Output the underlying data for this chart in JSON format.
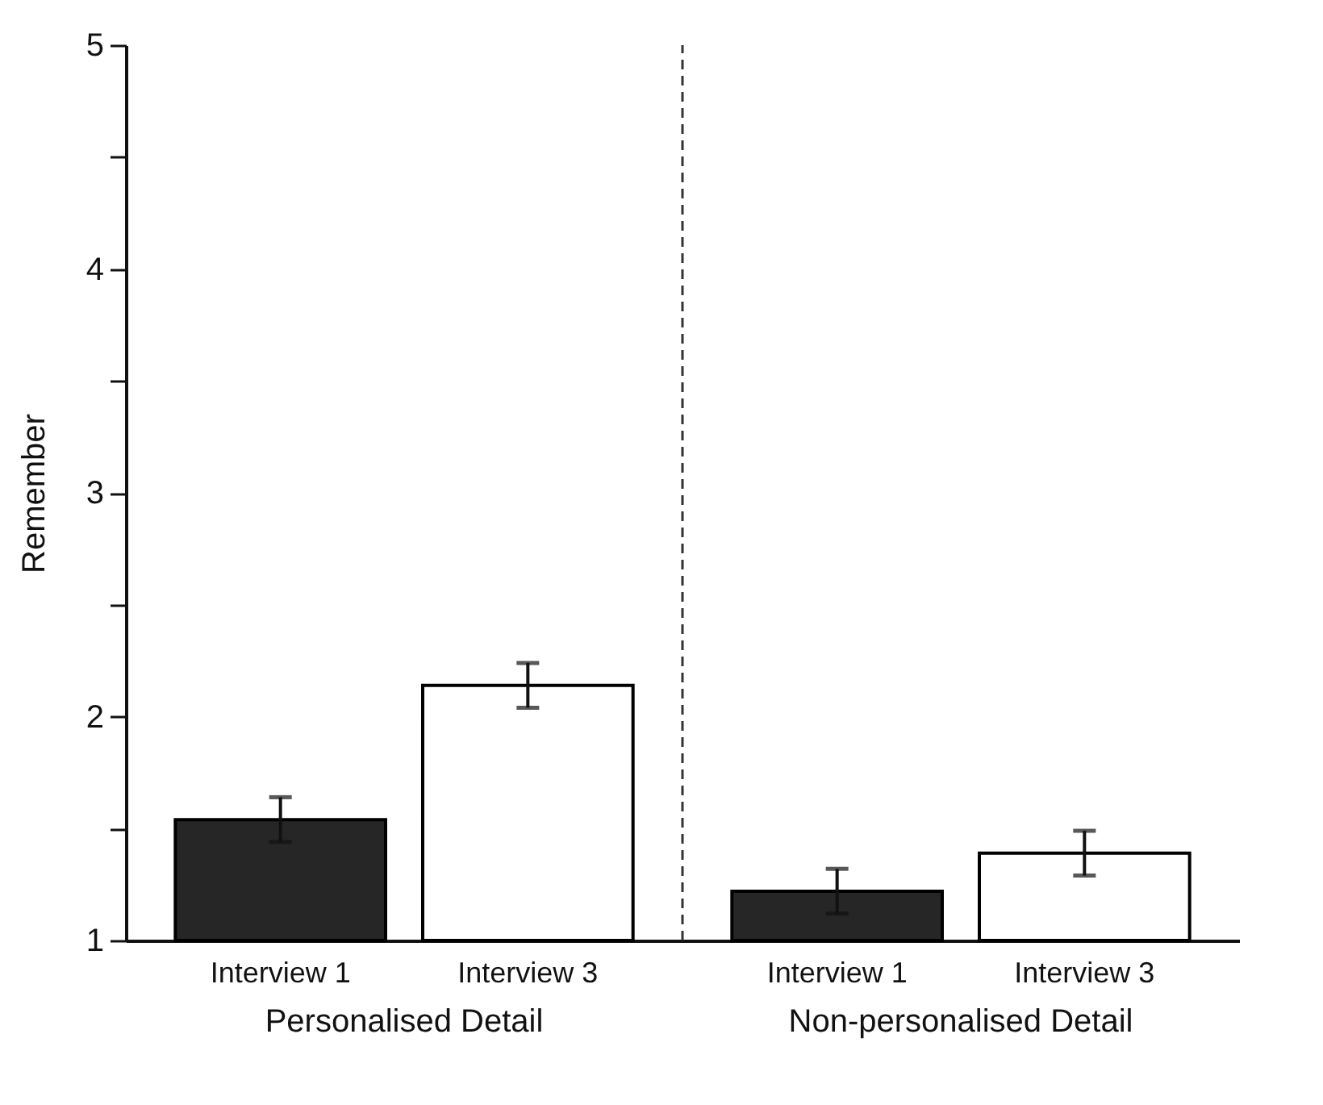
{
  "chart_data": {
    "type": "bar",
    "ylabel": "Remember",
    "categories": [
      "Personalised Detail",
      "Non-personalised Detail"
    ],
    "series": [
      {
        "name": "Interview 1",
        "color": "#262626",
        "values": [
          1.54,
          1.22
        ],
        "errors": [
          0.1,
          0.1
        ]
      },
      {
        "name": "Interview 3",
        "color": "#ffffff",
        "values": [
          2.14,
          1.39
        ],
        "errors": [
          0.1,
          0.1
        ]
      }
    ],
    "ylim": [
      1,
      5
    ],
    "yticks": [
      1,
      {
        "value": 1.5,
        "label": null
      },
      2,
      {
        "value": 2.5,
        "label": null
      },
      3,
      {
        "value": 3.5,
        "label": null
      },
      4,
      {
        "value": 4.5,
        "label": null
      },
      5
    ]
  }
}
